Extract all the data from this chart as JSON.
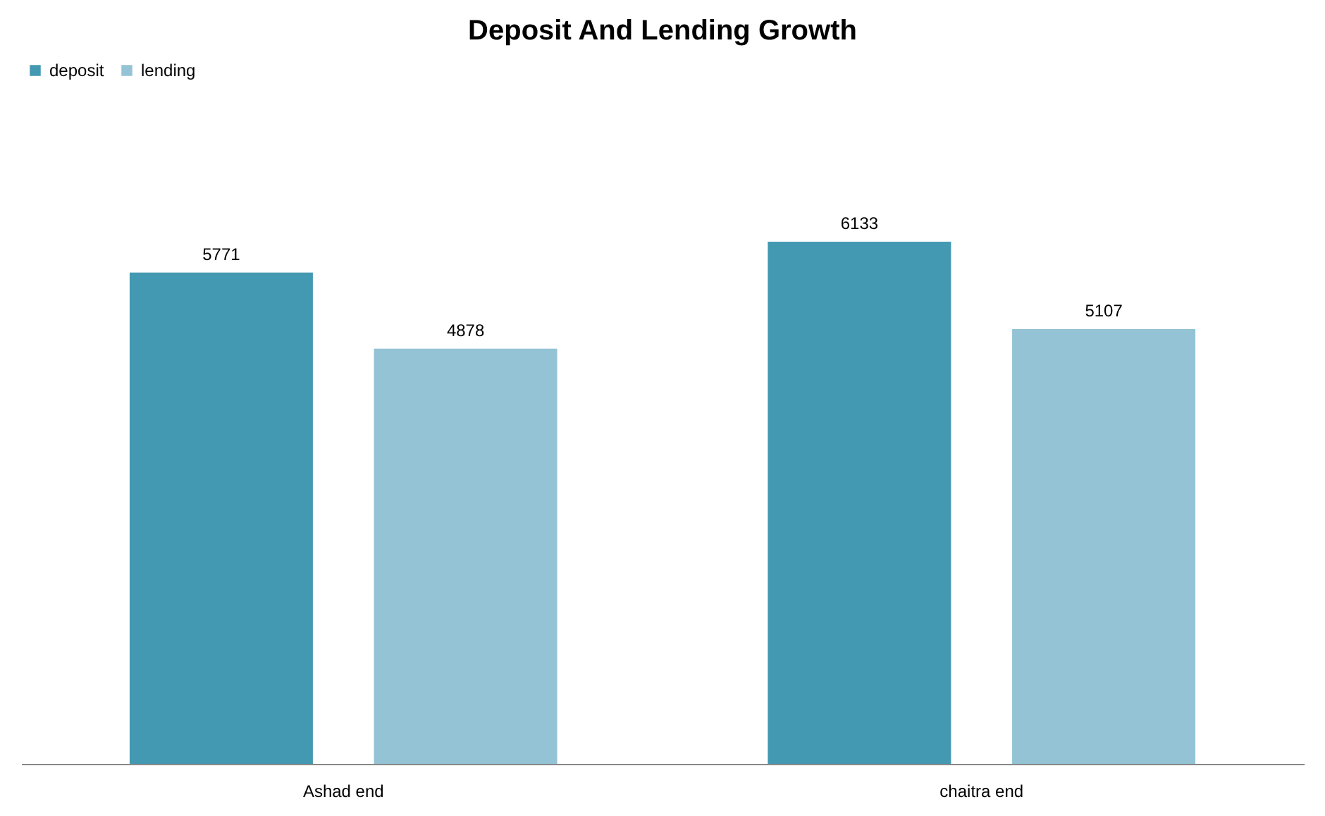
{
  "chart_data": {
    "type": "bar",
    "title": "Deposit And Lending Growth",
    "categories": [
      "Ashad end",
      "chaitra end"
    ],
    "series": [
      {
        "name": "deposit",
        "color": "#4399b1",
        "values": [
          5771,
          6133
        ]
      },
      {
        "name": "lending",
        "color": "#93c3d5",
        "values": [
          4878,
          5107
        ]
      }
    ],
    "data_labels": true,
    "legend": "top",
    "grid": false
  }
}
